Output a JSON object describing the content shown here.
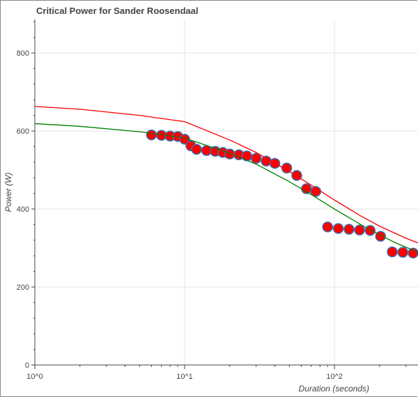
{
  "chart_data": {
    "type": "scatter",
    "title": "Critical Power for Sander Roosendaal",
    "xlabel": "Duration (seconds)",
    "ylabel": "Power (W)",
    "xscale": "log",
    "xlim": [
      1,
      361
    ],
    "ylim": [
      0,
      886
    ],
    "grid": true,
    "xticks": [
      {
        "value": 1,
        "label": "10^0"
      },
      {
        "value": 10,
        "label": "10^1"
      },
      {
        "value": 100,
        "label": "10^2"
      }
    ],
    "yticks": [
      {
        "value": 0,
        "label": "0"
      },
      {
        "value": 200,
        "label": "200"
      },
      {
        "value": 400,
        "label": "400"
      },
      {
        "value": 600,
        "label": "600"
      },
      {
        "value": 800,
        "label": "800"
      }
    ],
    "points": {
      "fill": "#ff0000",
      "outline": "#3a6fb0",
      "x": [
        6,
        7,
        8,
        9,
        10,
        11,
        12,
        14,
        16,
        18,
        20,
        23,
        26,
        30,
        35,
        40,
        48,
        56,
        65,
        75,
        90,
        106,
        125,
        147,
        173,
        203,
        243,
        286,
        335
      ],
      "y": [
        590,
        589,
        587,
        586,
        579,
        562,
        553,
        550,
        548,
        545,
        541,
        539,
        536,
        530,
        523,
        517,
        505,
        486,
        452,
        445,
        354,
        350,
        348,
        346,
        345,
        330,
        290,
        289,
        287
      ]
    },
    "lines": [
      {
        "color": "#ff0000",
        "x": [
          1,
          2,
          5,
          10,
          20,
          30,
          50,
          70,
          100,
          150,
          200,
          250,
          300,
          361
        ],
        "y": [
          663,
          656,
          640,
          624,
          577,
          545,
          496,
          461,
          423,
          382,
          356,
          339,
          325,
          313
        ]
      },
      {
        "color": "#008000",
        "x": [
          1,
          2,
          5,
          10,
          20,
          30,
          50,
          70,
          100,
          150,
          200,
          250,
          300,
          361
        ],
        "y": [
          619,
          612,
          598,
          582,
          543,
          515,
          470,
          437,
          400,
          360,
          334,
          315,
          302,
          289
        ]
      }
    ]
  }
}
